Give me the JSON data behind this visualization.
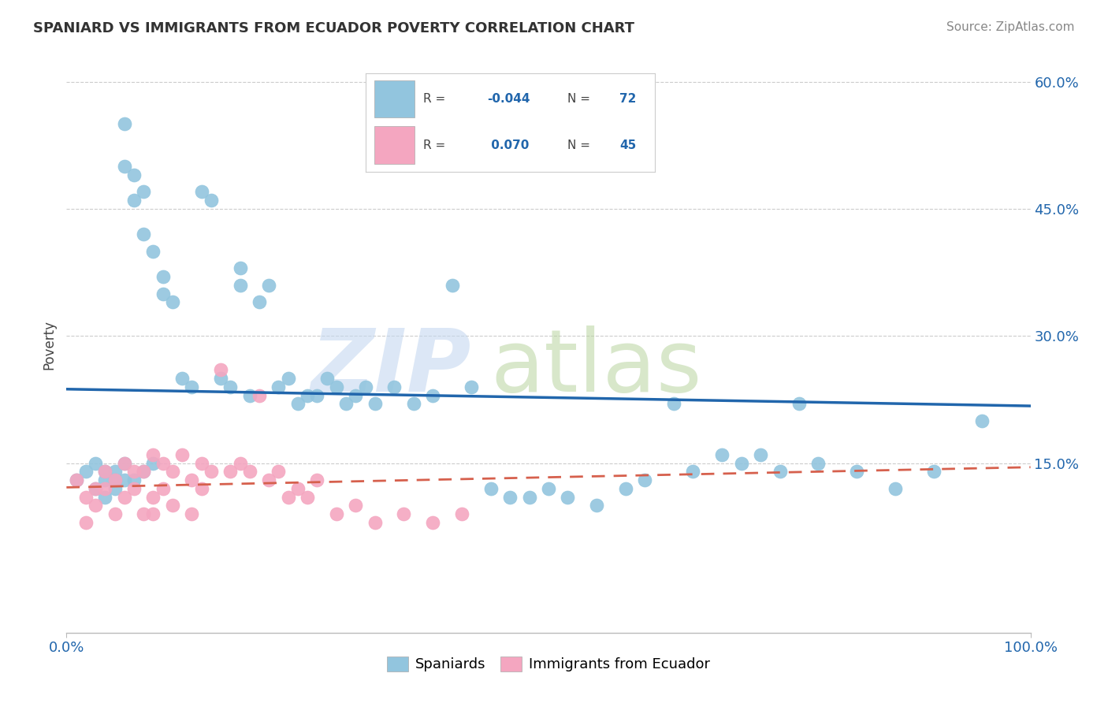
{
  "title": "SPANIARD VS IMMIGRANTS FROM ECUADOR POVERTY CORRELATION CHART",
  "source": "Source: ZipAtlas.com",
  "ylabel": "Poverty",
  "blue_color": "#92c5de",
  "pink_color": "#f4a6c0",
  "blue_line_color": "#2166ac",
  "pink_line_color": "#d6604d",
  "R_blue": -0.044,
  "N_blue": 72,
  "R_pink": 0.07,
  "N_pink": 45,
  "legend_label_blue": "Spaniards",
  "legend_label_pink": "Immigrants from Ecuador",
  "blue_x": [
    1,
    2,
    3,
    3,
    4,
    4,
    4,
    5,
    5,
    5,
    6,
    6,
    6,
    6,
    7,
    7,
    7,
    8,
    8,
    8,
    9,
    9,
    10,
    10,
    11,
    12,
    13,
    14,
    15,
    16,
    17,
    18,
    18,
    19,
    20,
    21,
    22,
    23,
    24,
    25,
    26,
    27,
    28,
    29,
    30,
    31,
    32,
    34,
    36,
    38,
    40,
    42,
    44,
    46,
    48,
    50,
    52,
    55,
    58,
    60,
    63,
    65,
    68,
    70,
    72,
    74,
    76,
    78,
    82,
    86,
    90,
    95
  ],
  "blue_y": [
    13,
    14,
    12,
    15,
    13,
    14,
    11,
    12,
    14,
    13,
    50,
    55,
    15,
    13,
    49,
    46,
    13,
    42,
    47,
    14,
    40,
    15,
    37,
    35,
    34,
    25,
    24,
    47,
    46,
    25,
    24,
    38,
    36,
    23,
    34,
    36,
    24,
    25,
    22,
    23,
    23,
    25,
    24,
    22,
    23,
    24,
    22,
    24,
    22,
    23,
    36,
    24,
    12,
    11,
    11,
    12,
    11,
    10,
    12,
    13,
    22,
    14,
    16,
    15,
    16,
    14,
    22,
    15,
    14,
    12,
    14,
    20
  ],
  "pink_x": [
    1,
    2,
    2,
    3,
    3,
    4,
    4,
    5,
    5,
    6,
    6,
    7,
    7,
    8,
    8,
    9,
    9,
    9,
    10,
    10,
    11,
    11,
    12,
    13,
    13,
    14,
    14,
    15,
    16,
    17,
    18,
    19,
    20,
    21,
    22,
    23,
    24,
    25,
    26,
    28,
    30,
    32,
    35,
    38,
    41
  ],
  "pink_y": [
    13,
    8,
    11,
    12,
    10,
    14,
    12,
    13,
    9,
    15,
    11,
    14,
    12,
    14,
    9,
    16,
    11,
    9,
    15,
    12,
    14,
    10,
    16,
    13,
    9,
    15,
    12,
    14,
    26,
    14,
    15,
    14,
    23,
    13,
    14,
    11,
    12,
    11,
    13,
    9,
    10,
    8,
    9,
    8,
    9
  ],
  "xlim": [
    0,
    100
  ],
  "ylim": [
    -5,
    63
  ],
  "yticks": [
    15,
    30,
    45,
    60
  ],
  "ytick_labels": [
    "15.0%",
    "30.0%",
    "45.0%",
    "60.0%"
  ],
  "xticks": [
    0,
    100
  ],
  "xtick_labels": [
    "0.0%",
    "100.0%"
  ]
}
